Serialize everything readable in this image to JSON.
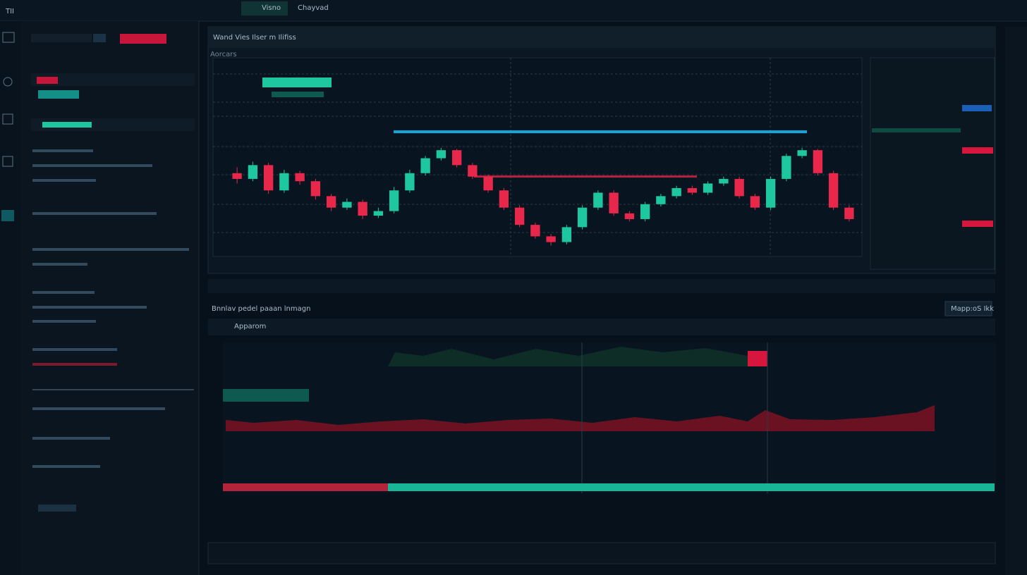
{
  "topbar": {
    "brand": "TII",
    "tabs": [
      "Visno",
      "Chayvad"
    ]
  },
  "chart_panel": {
    "title": "Wand Vies Ilser m Ilifiss",
    "label": "Aorcars"
  },
  "lower_panel": {
    "title": "Bnnlav pedel paaan lnmagn",
    "label": "Apparom",
    "button": "Mapp:oS Ikk"
  },
  "chart_data": {
    "type": "candlestick",
    "ylim": [
      0,
      100
    ],
    "up_color": "#1fc7a0",
    "down_color": "#e8284a",
    "ohlc": [
      [
        75,
        80,
        66,
        70
      ],
      [
        70,
        85,
        68,
        82
      ],
      [
        82,
        84,
        57,
        60
      ],
      [
        60,
        78,
        58,
        75
      ],
      [
        75,
        77,
        65,
        68
      ],
      [
        68,
        70,
        52,
        55
      ],
      [
        55,
        57,
        42,
        45
      ],
      [
        45,
        53,
        43,
        50
      ],
      [
        50,
        52,
        35,
        38
      ],
      [
        38,
        45,
        36,
        42
      ],
      [
        42,
        63,
        40,
        60
      ],
      [
        60,
        78,
        58,
        75
      ],
      [
        75,
        90,
        73,
        88
      ],
      [
        88,
        97,
        86,
        95
      ],
      [
        95,
        96,
        80,
        82
      ],
      [
        82,
        84,
        70,
        72
      ],
      [
        72,
        74,
        58,
        60
      ],
      [
        60,
        62,
        43,
        45
      ],
      [
        45,
        47,
        28,
        30
      ],
      [
        30,
        32,
        18,
        20
      ],
      [
        20,
        22,
        12,
        15
      ],
      [
        15,
        30,
        13,
        28
      ],
      [
        28,
        47,
        26,
        45
      ],
      [
        45,
        60,
        43,
        58
      ],
      [
        58,
        60,
        38,
        40
      ],
      [
        40,
        42,
        33,
        35
      ],
      [
        35,
        50,
        33,
        48
      ],
      [
        48,
        57,
        46,
        55
      ],
      [
        55,
        64,
        53,
        62
      ],
      [
        62,
        64,
        56,
        58
      ],
      [
        58,
        68,
        56,
        66
      ],
      [
        66,
        72,
        64,
        70
      ],
      [
        70,
        72,
        53,
        55
      ],
      [
        55,
        57,
        43,
        45
      ],
      [
        45,
        72,
        43,
        70
      ],
      [
        70,
        92,
        68,
        90
      ],
      [
        90,
        97,
        88,
        95
      ],
      [
        95,
        96,
        73,
        75
      ],
      [
        75,
        77,
        43,
        45
      ],
      [
        45,
        47,
        33,
        35
      ]
    ]
  }
}
